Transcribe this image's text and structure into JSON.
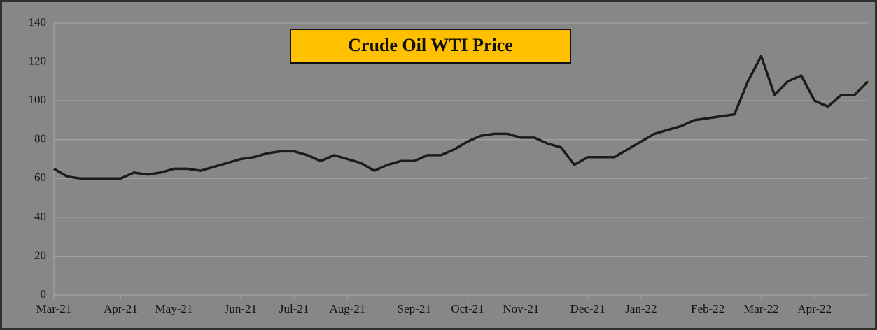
{
  "chart_data": {
    "type": "line",
    "title": "Crude Oil WTI Price",
    "categories": [
      "Mar-21",
      null,
      null,
      null,
      null,
      "Apr-21",
      null,
      null,
      null,
      "May-21",
      null,
      null,
      null,
      null,
      "Jun-21",
      null,
      null,
      null,
      "Jul-21",
      null,
      null,
      null,
      "Aug-21",
      null,
      null,
      null,
      null,
      "Sep-21",
      null,
      null,
      null,
      "Oct-21",
      null,
      null,
      null,
      "Nov-21",
      null,
      null,
      null,
      null,
      "Dec-21",
      null,
      null,
      null,
      "Jan-22",
      null,
      null,
      null,
      null,
      "Feb-22",
      null,
      null,
      null,
      "Mar-22",
      null,
      null,
      null,
      "Apr-22",
      null,
      null,
      null,
      null
    ],
    "values": [
      65,
      61,
      60,
      60,
      60,
      60,
      63,
      62,
      63,
      65,
      65,
      64,
      66,
      68,
      70,
      71,
      73,
      74,
      74,
      72,
      69,
      72,
      70,
      68,
      64,
      67,
      69,
      69,
      72,
      72,
      75,
      79,
      82,
      83,
      83,
      81,
      81,
      78,
      76,
      67,
      71,
      71,
      71,
      75,
      79,
      83,
      85,
      87,
      90,
      91,
      92,
      93,
      110,
      123,
      103,
      110,
      113,
      100,
      97,
      103,
      103,
      110
    ],
    "color": "#1e1c16",
    "ylim": [
      0,
      140
    ],
    "yticks": [
      0,
      20,
      40,
      60,
      80,
      100,
      120,
      140
    ],
    "grid": true
  }
}
